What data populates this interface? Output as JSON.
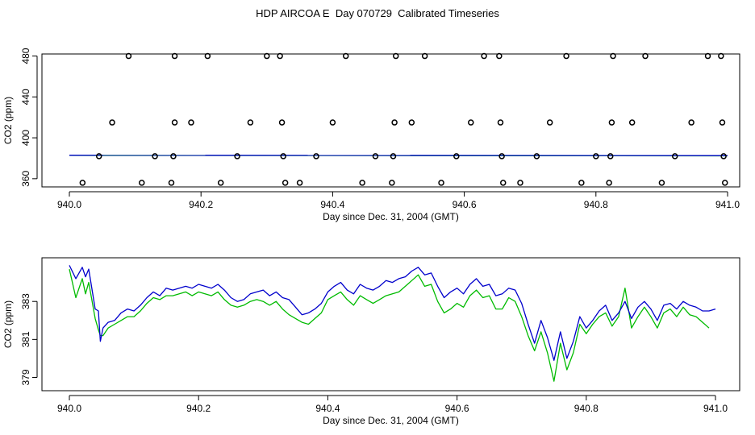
{
  "title": "HDP AIRCOA E  Day 070729  Calibrated Timeseries",
  "colors": {
    "blue": "#0000cc",
    "green": "#00bb00",
    "axis": "#000000"
  },
  "chart_data": [
    {
      "type": "scatter+line",
      "xlabel": "Day since Dec. 31, 2004 (GMT)",
      "ylabel": "CO2 (ppm)",
      "xlim": [
        940.0,
        941.0
      ],
      "ylim": [
        352,
        482
      ],
      "xticks": [
        "940.0",
        "940.2",
        "940.4",
        "940.6",
        "940.8",
        "941.0"
      ],
      "yticks": [
        "360",
        "400",
        "440",
        "480"
      ],
      "calibration_points": [
        {
          "x": 940.02,
          "y": 356
        },
        {
          "x": 940.045,
          "y": 382
        },
        {
          "x": 940.065,
          "y": 415
        },
        {
          "x": 940.09,
          "y": 480
        },
        {
          "x": 940.11,
          "y": 356
        },
        {
          "x": 940.13,
          "y": 382
        },
        {
          "x": 940.155,
          "y": 356
        },
        {
          "x": 940.158,
          "y": 382
        },
        {
          "x": 940.16,
          "y": 415
        },
        {
          "x": 940.16,
          "y": 480
        },
        {
          "x": 940.185,
          "y": 415
        },
        {
          "x": 940.21,
          "y": 480
        },
        {
          "x": 940.23,
          "y": 356
        },
        {
          "x": 940.255,
          "y": 382
        },
        {
          "x": 940.275,
          "y": 415
        },
        {
          "x": 940.3,
          "y": 480
        },
        {
          "x": 940.32,
          "y": 480
        },
        {
          "x": 940.323,
          "y": 415
        },
        {
          "x": 940.325,
          "y": 382
        },
        {
          "x": 940.328,
          "y": 356
        },
        {
          "x": 940.35,
          "y": 356
        },
        {
          "x": 940.375,
          "y": 382
        },
        {
          "x": 940.4,
          "y": 415
        },
        {
          "x": 940.42,
          "y": 480
        },
        {
          "x": 940.445,
          "y": 356
        },
        {
          "x": 940.465,
          "y": 382
        },
        {
          "x": 940.49,
          "y": 356
        },
        {
          "x": 940.492,
          "y": 382
        },
        {
          "x": 940.494,
          "y": 415
        },
        {
          "x": 940.496,
          "y": 480
        },
        {
          "x": 940.52,
          "y": 415
        },
        {
          "x": 940.54,
          "y": 480
        },
        {
          "x": 940.565,
          "y": 356
        },
        {
          "x": 940.588,
          "y": 382
        },
        {
          "x": 940.61,
          "y": 415
        },
        {
          "x": 940.63,
          "y": 480
        },
        {
          "x": 940.653,
          "y": 480
        },
        {
          "x": 940.655,
          "y": 415
        },
        {
          "x": 940.657,
          "y": 382
        },
        {
          "x": 940.659,
          "y": 356
        },
        {
          "x": 940.685,
          "y": 356
        },
        {
          "x": 940.71,
          "y": 382
        },
        {
          "x": 940.73,
          "y": 415
        },
        {
          "x": 940.755,
          "y": 480
        },
        {
          "x": 940.778,
          "y": 356
        },
        {
          "x": 940.8,
          "y": 382
        },
        {
          "x": 940.82,
          "y": 356
        },
        {
          "x": 940.822,
          "y": 382
        },
        {
          "x": 940.824,
          "y": 415
        },
        {
          "x": 940.826,
          "y": 480
        },
        {
          "x": 940.855,
          "y": 415
        },
        {
          "x": 940.875,
          "y": 480
        },
        {
          "x": 940.9,
          "y": 356
        },
        {
          "x": 940.92,
          "y": 382
        },
        {
          "x": 940.945,
          "y": 415
        },
        {
          "x": 940.97,
          "y": 480
        },
        {
          "x": 940.99,
          "y": 480
        },
        {
          "x": 940.992,
          "y": 415
        },
        {
          "x": 940.994,
          "y": 382
        },
        {
          "x": 940.996,
          "y": 356
        }
      ],
      "series": [
        {
          "color": "blue",
          "x": [
            940.0,
            941.0
          ],
          "y": [
            383.0,
            382.6
          ]
        },
        {
          "color": "green",
          "x": [
            940.0,
            941.0
          ],
          "y": [
            382.8,
            382.3
          ]
        }
      ]
    },
    {
      "type": "line",
      "xlabel": "Day since Dec. 31, 2004 (GMT)",
      "ylabel": "CO2 (ppm)",
      "xlim": [
        940.0,
        941.0
      ],
      "ylim": [
        378.3,
        385.3
      ],
      "xticks": [
        "940.0",
        "940.2",
        "940.4",
        "940.6",
        "940.8",
        "941.0"
      ],
      "yticks": [
        "379",
        "381",
        "383"
      ],
      "series": [
        {
          "color": "blue",
          "x": [
            940.0,
            940.01,
            940.02,
            940.025,
            940.03,
            940.04,
            940.045,
            940.048,
            940.052,
            940.06,
            940.07,
            940.08,
            940.09,
            940.1,
            940.11,
            940.12,
            940.13,
            940.14,
            940.15,
            940.16,
            940.17,
            940.18,
            940.19,
            940.2,
            940.21,
            940.22,
            940.23,
            940.24,
            940.25,
            940.26,
            940.27,
            940.28,
            940.29,
            940.3,
            940.31,
            940.32,
            940.33,
            940.34,
            940.35,
            940.36,
            940.37,
            940.38,
            940.39,
            940.4,
            940.41,
            940.42,
            940.43,
            940.44,
            940.45,
            940.46,
            940.47,
            940.48,
            940.49,
            940.5,
            940.51,
            940.52,
            940.53,
            940.54,
            940.55,
            940.56,
            940.57,
            940.58,
            940.59,
            940.6,
            940.61,
            940.62,
            940.63,
            940.64,
            940.65,
            940.66,
            940.67,
            940.68,
            940.69,
            940.7,
            940.71,
            940.72,
            940.73,
            940.74,
            940.75,
            940.76,
            940.77,
            940.78,
            940.79,
            940.8,
            940.81,
            940.82,
            940.83,
            940.84,
            940.85,
            940.86,
            940.87,
            940.88,
            940.89,
            940.9,
            940.91,
            940.92,
            940.93,
            940.94,
            940.95,
            940.96,
            940.97,
            940.98,
            940.99,
            941.0
          ],
          "y": [
            384.9,
            384.2,
            384.8,
            384.3,
            384.7,
            382.6,
            382.5,
            380.9,
            381.6,
            381.9,
            382.0,
            382.4,
            382.6,
            382.5,
            382.8,
            383.2,
            383.5,
            383.3,
            383.7,
            383.6,
            383.7,
            383.8,
            383.7,
            383.9,
            383.8,
            383.7,
            383.9,
            383.6,
            383.2,
            383.0,
            383.1,
            383.4,
            383.5,
            383.6,
            383.3,
            383.5,
            383.2,
            383.1,
            382.7,
            382.3,
            382.4,
            382.6,
            382.9,
            383.5,
            383.8,
            384.0,
            383.6,
            383.4,
            383.9,
            383.7,
            383.6,
            383.8,
            384.1,
            384.0,
            384.2,
            384.3,
            384.6,
            384.8,
            384.4,
            384.5,
            383.8,
            383.2,
            383.5,
            383.7,
            383.4,
            383.9,
            384.2,
            383.8,
            383.9,
            383.3,
            383.4,
            383.7,
            383.6,
            382.9,
            381.8,
            380.8,
            382.0,
            381.1,
            379.9,
            381.4,
            380.0,
            380.9,
            382.2,
            381.6,
            382.0,
            382.5,
            382.8,
            382.0,
            382.4,
            383.0,
            382.1,
            382.7,
            383.0,
            382.6,
            382.0,
            382.8,
            382.9,
            382.6,
            383.0,
            382.8,
            382.7,
            382.5,
            382.5,
            382.6
          ]
        },
        {
          "color": "green",
          "x": [
            940.0,
            940.01,
            940.02,
            940.025,
            940.03,
            940.04,
            940.045,
            940.048,
            940.052,
            940.06,
            940.07,
            940.08,
            940.09,
            940.1,
            940.11,
            940.12,
            940.13,
            940.14,
            940.15,
            940.16,
            940.17,
            940.18,
            940.19,
            940.2,
            940.21,
            940.22,
            940.23,
            940.24,
            940.25,
            940.26,
            940.27,
            940.28,
            940.29,
            940.3,
            940.31,
            940.32,
            940.33,
            940.34,
            940.35,
            940.36,
            940.37,
            940.38,
            940.39,
            940.4,
            940.41,
            940.42,
            940.43,
            940.44,
            940.45,
            940.46,
            940.47,
            940.48,
            940.49,
            940.5,
            940.51,
            940.52,
            940.53,
            940.54,
            940.55,
            940.56,
            940.57,
            940.58,
            940.59,
            940.6,
            940.61,
            940.62,
            940.63,
            940.64,
            940.65,
            940.66,
            940.67,
            940.68,
            940.69,
            940.7,
            940.71,
            940.72,
            940.73,
            940.74,
            940.75,
            940.76,
            940.77,
            940.78,
            940.79,
            940.8,
            940.81,
            940.82,
            940.83,
            940.84,
            940.85,
            940.86,
            940.87,
            940.88,
            940.89,
            940.9,
            940.91,
            940.92,
            940.93,
            940.94,
            940.95,
            940.96,
            940.97,
            940.98,
            940.99
          ],
          "y": [
            384.7,
            383.2,
            384.2,
            383.4,
            384.0,
            382.1,
            381.5,
            381.2,
            381.2,
            381.6,
            381.8,
            382.0,
            382.2,
            382.2,
            382.5,
            382.9,
            383.2,
            383.1,
            383.3,
            383.3,
            383.4,
            383.5,
            383.3,
            383.5,
            383.4,
            383.3,
            383.5,
            383.1,
            382.8,
            382.7,
            382.8,
            383.0,
            383.1,
            383.0,
            382.8,
            383.0,
            382.6,
            382.3,
            382.1,
            381.9,
            381.8,
            382.1,
            382.4,
            383.1,
            383.3,
            383.5,
            383.1,
            382.8,
            383.3,
            383.1,
            382.9,
            383.1,
            383.3,
            383.4,
            383.5,
            383.8,
            384.1,
            384.4,
            383.8,
            383.9,
            383.0,
            382.4,
            382.6,
            382.9,
            382.7,
            383.3,
            383.6,
            383.2,
            383.3,
            382.6,
            382.6,
            383.2,
            383.0,
            382.2,
            381.2,
            380.4,
            381.4,
            380.3,
            378.8,
            380.8,
            379.4,
            380.3,
            381.8,
            381.3,
            381.8,
            382.2,
            382.4,
            381.7,
            382.2,
            383.7,
            381.6,
            382.2,
            382.7,
            382.2,
            381.6,
            382.4,
            382.6,
            382.2,
            382.7,
            382.3,
            382.2,
            381.9,
            381.6
          ]
        }
      ]
    }
  ]
}
